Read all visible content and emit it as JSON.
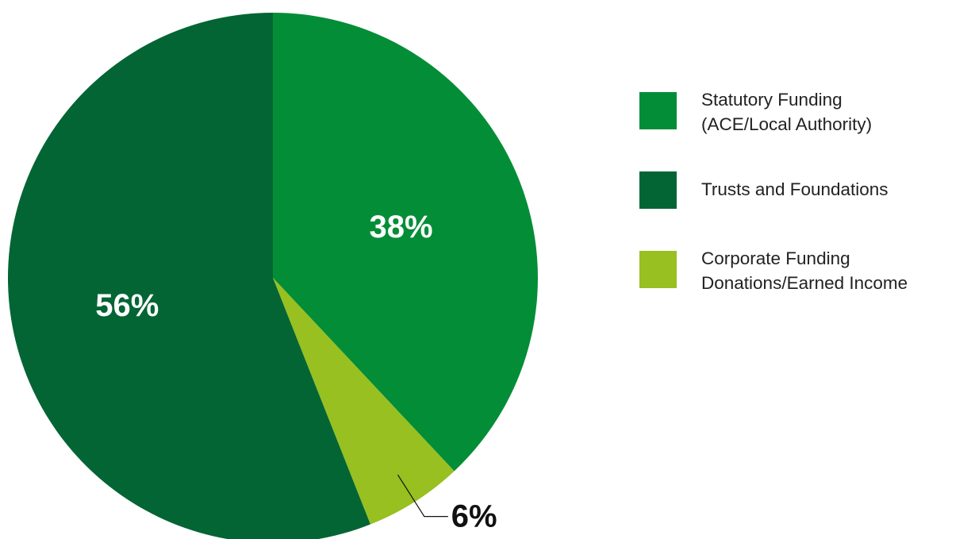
{
  "chart_data": {
    "type": "pie",
    "title": "",
    "slices": [
      {
        "label_lines": [
          "Statutory Funding",
          "(ACE/Local Authority)"
        ],
        "value": 38,
        "display": "38%",
        "color": "#048d37"
      },
      {
        "label_lines": [
          "Corporate Funding",
          "Donations/Earned Income"
        ],
        "value": 6,
        "display": "6%",
        "color": "#97c020"
      },
      {
        "label_lines": [
          "Trusts and Foundations"
        ],
        "value": 56,
        "display": "56%",
        "color": "#036534"
      }
    ],
    "legend_order": [
      0,
      2,
      1
    ],
    "legend_position": "right",
    "start_angle": "12 o'clock",
    "direction": "clockwise"
  }
}
